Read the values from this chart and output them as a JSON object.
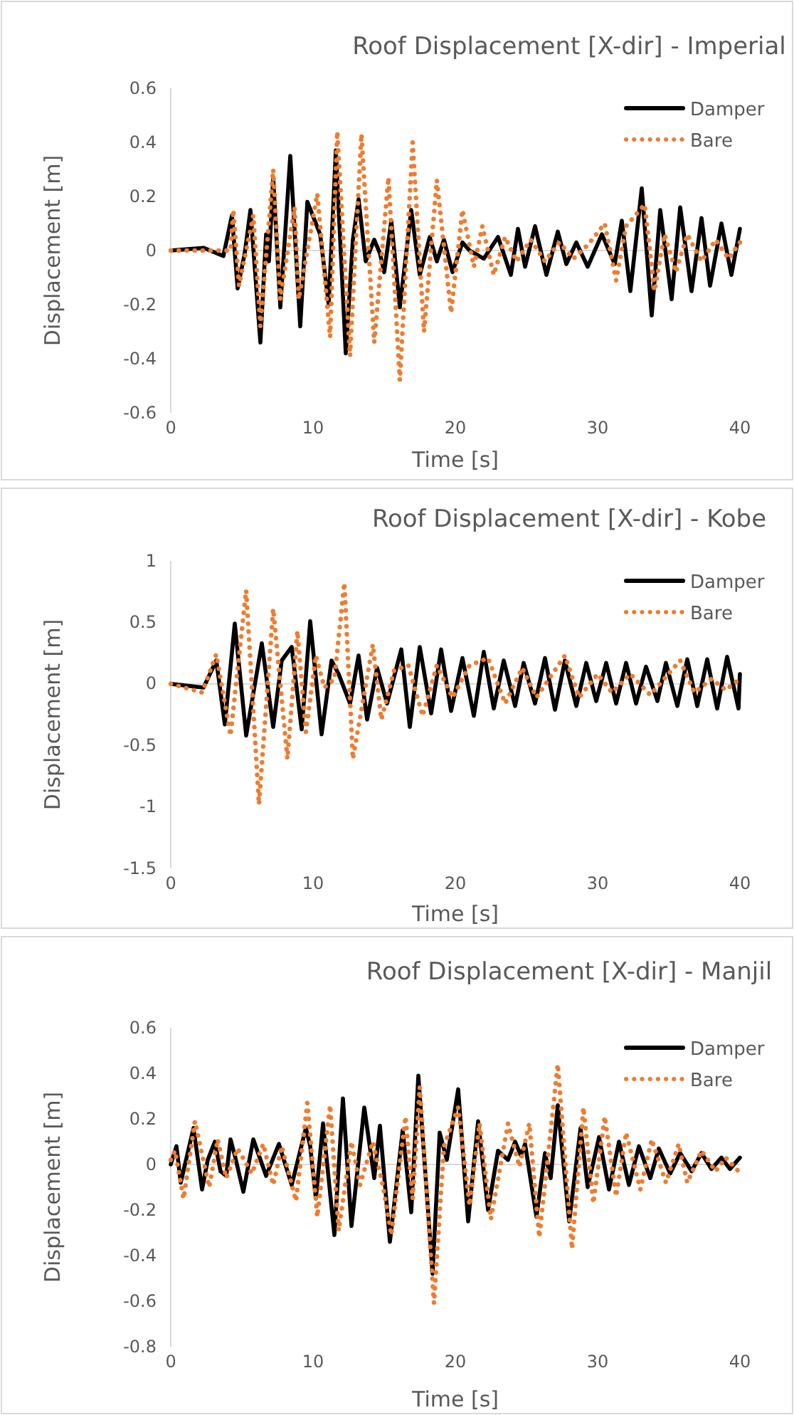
{
  "chart_data": [
    {
      "type": "line",
      "title": "Roof Displacement [X-dir] - Imperial",
      "xlabel": "Time [s]",
      "ylabel": "Displacement [m]",
      "xlim": [
        0,
        40
      ],
      "xticks": [
        0,
        10,
        20,
        30,
        40
      ],
      "ylim": [
        -0.6,
        0.6
      ],
      "yticks": [
        -0.6,
        -0.4,
        -0.2,
        0,
        0.2,
        0.4,
        0.6
      ],
      "legend": "top right",
      "series": [
        {
          "name": "Damper",
          "color": "#000000",
          "line_style": "solid",
          "x": [
            0,
            2.3,
            3.7,
            4.3,
            4.7,
            5.2,
            5.6,
            6.3,
            6.7,
            6.9,
            7.2,
            7.7,
            8.4,
            9.1,
            9.6,
            10.5,
            11.1,
            11.6,
            12.3,
            12.8,
            13.2,
            13.7,
            14.3,
            14.7,
            15.0,
            15.5,
            16.1,
            16.9,
            17.5,
            18.2,
            18.7,
            19.2,
            19.8,
            20.5,
            21.0,
            22.0,
            23.0,
            23.9,
            24.4,
            24.9,
            25.6,
            26.4,
            27.2,
            27.8,
            28.5,
            29.3,
            30.3,
            31.2,
            31.7,
            32.3,
            33.1,
            33.8,
            34.4,
            35.2,
            35.8,
            36.6,
            37.3,
            37.9,
            38.7,
            39.4,
            40
          ],
          "values": [
            0,
            0.01,
            -0.02,
            0.13,
            -0.14,
            -0.01,
            0.15,
            -0.34,
            0.06,
            -0.04,
            0.27,
            -0.21,
            0.35,
            -0.28,
            0.18,
            0.06,
            -0.2,
            0.37,
            -0.38,
            0.04,
            0.19,
            -0.04,
            0.04,
            -0.01,
            -0.08,
            0.11,
            -0.21,
            0.15,
            -0.09,
            0.05,
            -0.04,
            0.04,
            -0.08,
            0.03,
            0,
            -0.03,
            0.05,
            -0.09,
            0.08,
            -0.06,
            0.09,
            -0.09,
            0.07,
            -0.05,
            0.03,
            -0.06,
            0.06,
            -0.05,
            0.11,
            -0.15,
            0.23,
            -0.24,
            0.15,
            -0.18,
            0.16,
            -0.15,
            0.12,
            -0.13,
            0.1,
            -0.09,
            0.08
          ]
        },
        {
          "name": "Bare",
          "color": "#ed7d31",
          "line_style": "dotted",
          "x": [
            0,
            4.2,
            4.4,
            4.8,
            5.8,
            6.3,
            7.2,
            7.7,
            8.7,
            9.0,
            10.3,
            11.2,
            11.7,
            12.6,
            13.4,
            14.3,
            15.3,
            16.1,
            17.0,
            17.8,
            18.7,
            19.7,
            20.5,
            21.3,
            21.9,
            22.7,
            23.5,
            24.3,
            25.3,
            26.3,
            27.3,
            28.3,
            29.3,
            30.5,
            31.3,
            32.0,
            33.3,
            34.0,
            34.7,
            35.5,
            36.3,
            37.3,
            38.3,
            39.2,
            40
          ],
          "values": [
            0,
            0,
            0.15,
            -0.13,
            0.13,
            -0.28,
            0.3,
            -0.18,
            0.16,
            -0.18,
            0.21,
            -0.32,
            0.44,
            -0.39,
            0.43,
            -0.34,
            0.27,
            -0.48,
            0.4,
            -0.3,
            0.26,
            -0.23,
            0.15,
            -0.06,
            0.09,
            -0.09,
            0.05,
            -0.04,
            0.04,
            -0.04,
            0.03,
            -0.03,
            0.02,
            0.1,
            -0.11,
            0.09,
            0.17,
            -0.15,
            0.06,
            -0.08,
            0.06,
            -0.04,
            0.04,
            -0.03,
            0.03
          ]
        }
      ]
    },
    {
      "type": "line",
      "title": "Roof Displacement [X-dir] - Kobe",
      "xlabel": "Time [s]",
      "ylabel": "Displacement [m]",
      "xlim": [
        0,
        40
      ],
      "xticks": [
        0,
        10,
        20,
        30,
        40
      ],
      "ylim": [
        -1.5,
        1
      ],
      "yticks": [
        -1.5,
        -1,
        -0.5,
        0,
        0.5,
        1
      ],
      "legend": "top right",
      "series": [
        {
          "name": "Damper",
          "color": "#000000",
          "line_style": "solid",
          "x": [
            0,
            2.3,
            3.2,
            3.8,
            4.5,
            5.3,
            6.4,
            7.2,
            7.8,
            8.5,
            9.2,
            9.8,
            10.6,
            11.3,
            11.8,
            12.6,
            13.2,
            13.8,
            14.5,
            15.2,
            16.2,
            16.8,
            17.5,
            18.3,
            19.0,
            19.7,
            20.5,
            21.3,
            22.0,
            22.7,
            23.4,
            24.2,
            24.8,
            25.6,
            26.3,
            27.0,
            27.7,
            28.5,
            29.2,
            29.9,
            30.6,
            31.3,
            32.0,
            32.7,
            33.4,
            34.2,
            34.8,
            35.6,
            36.3,
            37.0,
            37.7,
            38.4,
            39.1,
            39.9,
            40
          ],
          "values": [
            0,
            -0.03,
            0.19,
            -0.33,
            0.49,
            -0.42,
            0.33,
            -0.35,
            0.19,
            0.3,
            -0.37,
            0.51,
            -0.41,
            0.19,
            0.08,
            -0.16,
            0.23,
            -0.29,
            0.13,
            -0.16,
            0.28,
            -0.35,
            0.3,
            -0.24,
            0.28,
            -0.22,
            0.21,
            -0.26,
            0.26,
            -0.2,
            0.19,
            -0.18,
            0.17,
            -0.16,
            0.21,
            -0.21,
            0.19,
            -0.18,
            0.17,
            -0.14,
            0.17,
            -0.16,
            0.17,
            -0.16,
            0.14,
            -0.14,
            0.17,
            -0.18,
            0.2,
            -0.18,
            0.2,
            -0.2,
            0.22,
            -0.2,
            0.08
          ]
        },
        {
          "name": "Bare",
          "color": "#ed7d31",
          "line_style": "dotted",
          "x": [
            0,
            2.2,
            3.2,
            4.2,
            5.3,
            6.2,
            7.2,
            8.2,
            8.9,
            9.5,
            10.2,
            10.8,
            11.5,
            12.2,
            12.8,
            14.2,
            14.8,
            15.7,
            16.7,
            17.7,
            18.7,
            19.8,
            21.0,
            22.3,
            23.5,
            24.7,
            25.7,
            27.7,
            28.7,
            30.0,
            31.0,
            32.3,
            33.7,
            35.8,
            36.8,
            38.0,
            39.0,
            40
          ],
          "values": [
            0,
            -0.07,
            0.24,
            -0.42,
            0.76,
            -0.98,
            0.61,
            -0.61,
            0.43,
            -0.39,
            0.23,
            -0.03,
            0.04,
            0.82,
            -0.61,
            0.32,
            -0.29,
            0.11,
            0.15,
            -0.26,
            0.15,
            -0.11,
            0.15,
            0.21,
            -0.16,
            0.13,
            -0.11,
            0.23,
            -0.11,
            0.08,
            -0.07,
            0.08,
            -0.09,
            0.19,
            -0.07,
            0.04,
            -0.05,
            0.04
          ]
        }
      ]
    },
    {
      "type": "line",
      "title": "Roof Displacement [X-dir] - Manjil",
      "xlabel": "Time [s]",
      "ylabel": "Displacement [m]",
      "xlim": [
        0,
        40
      ],
      "xticks": [
        0,
        10,
        20,
        30,
        40
      ],
      "ylim": [
        -0.8,
        0.6
      ],
      "yticks": [
        -0.8,
        -0.6,
        -0.4,
        -0.2,
        0,
        0.2,
        0.4,
        0.6
      ],
      "legend": "top right",
      "series": [
        {
          "name": "Damper",
          "color": "#000000",
          "line_style": "solid",
          "x": [
            0,
            0.4,
            0.7,
            1.6,
            2.2,
            2.6,
            3.1,
            3.5,
            3.9,
            4.2,
            4.5,
            5.1,
            5.8,
            6.7,
            7.6,
            8.5,
            9.5,
            9.8,
            10.2,
            10.7,
            11.5,
            12.1,
            12.7,
            13.6,
            14.3,
            14.7,
            15.4,
            16.3,
            16.9,
            17.4,
            18.4,
            18.9,
            19.4,
            20.2,
            20.9,
            21.6,
            22.3,
            23.0,
            23.7,
            24.2,
            24.6,
            24.9,
            25.7,
            26.3,
            26.7,
            27.2,
            28.0,
            28.8,
            29.3,
            30.1,
            30.8,
            31.5,
            32.2,
            32.9,
            33.7,
            34.3,
            35.1,
            35.8,
            36.6,
            37.3,
            38.0,
            38.7,
            39.3,
            40
          ],
          "values": [
            0,
            0.08,
            -0.08,
            0.16,
            -0.11,
            0.02,
            0.1,
            -0.03,
            -0.05,
            0.11,
            0.04,
            -0.12,
            0.11,
            -0.05,
            0.09,
            -0.09,
            0.16,
            0.08,
            -0.15,
            0.18,
            -0.31,
            0.29,
            -0.27,
            0.25,
            -0.06,
            0.17,
            -0.34,
            0.15,
            -0.21,
            0.39,
            -0.48,
            0.14,
            0.02,
            0.33,
            -0.25,
            0.19,
            -0.2,
            0.06,
            0.02,
            0.1,
            0.04,
            0.09,
            -0.23,
            0.05,
            -0.06,
            0.26,
            -0.25,
            0.16,
            -0.1,
            0.12,
            -0.11,
            0.1,
            -0.09,
            0.08,
            -0.06,
            0.07,
            -0.04,
            0.05,
            -0.03,
            0.05,
            -0.02,
            0.03,
            -0.02,
            0.03
          ]
        },
        {
          "name": "Bare",
          "color": "#ed7d31",
          "line_style": "dotted",
          "x": [
            0,
            0.3,
            0.9,
            1.7,
            2.7,
            3.3,
            3.9,
            4.7,
            5.7,
            6.5,
            7.2,
            7.8,
            8.8,
            9.6,
            10.3,
            11.2,
            11.8,
            12.7,
            13.3,
            14.2,
            14.9,
            15.5,
            16.5,
            17.0,
            17.5,
            18.5,
            19.2,
            20.2,
            21.0,
            21.7,
            22.5,
            23.7,
            24.5,
            25.2,
            25.9,
            27.2,
            28.2,
            29.0,
            29.7,
            30.5,
            31.3,
            32.0,
            33.0,
            33.8,
            34.8,
            35.7,
            36.3,
            37.3,
            38.3,
            39.0,
            39.9
          ],
          "values": [
            0.02,
            0.06,
            -0.15,
            0.19,
            -0.1,
            0.11,
            -0.06,
            0.07,
            -0.04,
            0.09,
            -0.09,
            0.08,
            -0.16,
            0.27,
            -0.23,
            0.26,
            -0.29,
            0.1,
            -0.09,
            0.1,
            -0.09,
            -0.31,
            0.21,
            -0.15,
            0.34,
            -0.61,
            0.08,
            0.25,
            -0.18,
            0.18,
            -0.24,
            0.18,
            -0.01,
            0.18,
            -0.32,
            0.44,
            -0.37,
            0.25,
            -0.17,
            0.21,
            -0.14,
            0.14,
            -0.11,
            0.11,
            -0.08,
            0.09,
            -0.08,
            0.06,
            -0.03,
            0.03,
            -0.03
          ]
        }
      ]
    }
  ]
}
